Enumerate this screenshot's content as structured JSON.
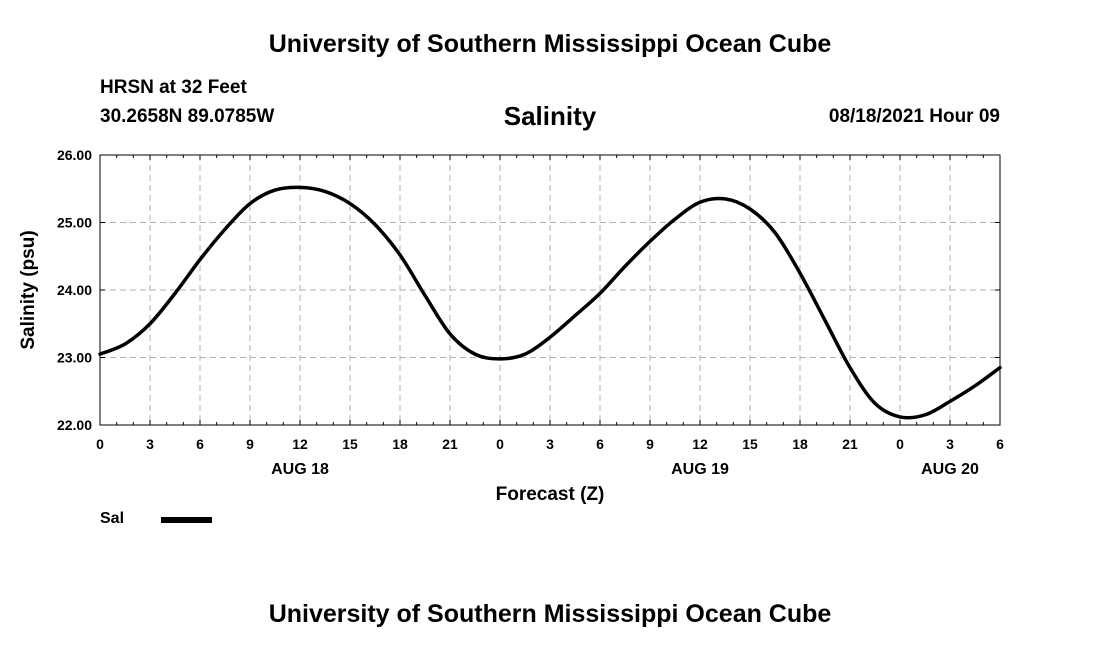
{
  "page": {
    "top_title": "University of Southern Mississippi Ocean Cube",
    "bottom_title": "University of Southern Mississippi Ocean Cube",
    "station": "HRSN at 32 Feet",
    "coords": "30.2658N  89.0785W",
    "datetime": "08/18/2021 Hour 09"
  },
  "legend": {
    "label": "Sal",
    "color": "#000000"
  },
  "chart_data": {
    "type": "line",
    "title": "Salinity",
    "xlabel": "Forecast (Z)",
    "ylabel": "Salinity (psu)",
    "xlim": [
      0,
      54
    ],
    "ylim": [
      22,
      26
    ],
    "grid": true,
    "x_ticks": [
      0,
      3,
      6,
      9,
      12,
      15,
      18,
      21,
      24,
      27,
      30,
      33,
      36,
      39,
      42,
      45,
      48,
      51,
      54
    ],
    "x_tick_labels": [
      "0",
      "3",
      "6",
      "9",
      "12",
      "15",
      "18",
      "21",
      "0",
      "3",
      "6",
      "9",
      "12",
      "15",
      "18",
      "21",
      "0",
      "3",
      "6"
    ],
    "y_ticks": [
      22,
      23,
      24,
      25,
      26
    ],
    "y_tick_labels": [
      "22.00",
      "23.00",
      "24.00",
      "25.00",
      "26.00"
    ],
    "day_labels": [
      {
        "x": 12,
        "label": "AUG 18"
      },
      {
        "x": 36,
        "label": "AUG 19"
      },
      {
        "x": 51,
        "label": "AUG 20"
      }
    ],
    "series": [
      {
        "name": "Sal",
        "color": "#000000",
        "x": [
          0,
          1.5,
          3,
          4.5,
          6,
          7.5,
          9,
          10.5,
          12,
          13.5,
          15,
          16.5,
          18,
          19.5,
          21,
          22.5,
          24,
          25.5,
          27,
          28.5,
          30,
          31.5,
          33,
          34.5,
          36,
          37.5,
          39,
          40.5,
          42,
          43.5,
          45,
          46.5,
          48,
          49.5,
          51,
          52.5,
          54
        ],
        "values": [
          23.05,
          23.2,
          23.5,
          23.95,
          24.45,
          24.9,
          25.28,
          25.48,
          25.52,
          25.46,
          25.28,
          24.97,
          24.52,
          23.92,
          23.35,
          23.05,
          22.98,
          23.05,
          23.3,
          23.62,
          23.95,
          24.35,
          24.72,
          25.05,
          25.3,
          25.35,
          25.2,
          24.85,
          24.25,
          23.55,
          22.85,
          22.32,
          22.12,
          22.15,
          22.35,
          22.58,
          22.85
        ]
      }
    ]
  }
}
